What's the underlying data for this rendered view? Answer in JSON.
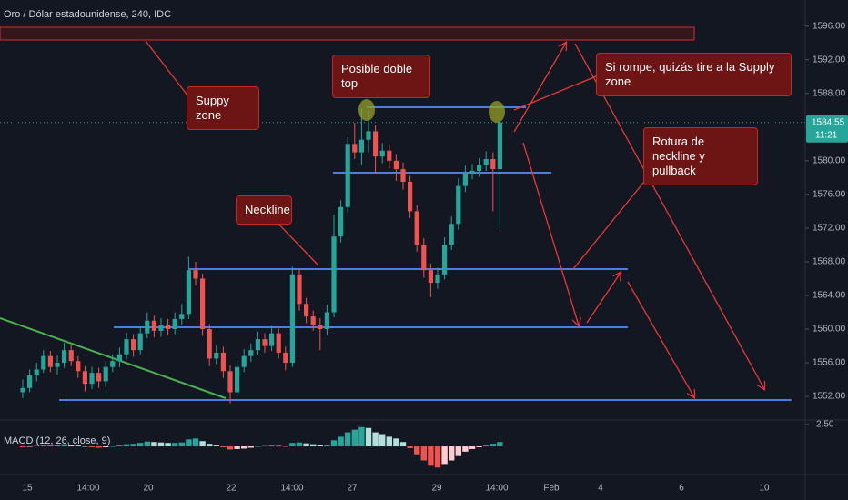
{
  "header": "Oro / Dólar estadounidense, 240, IDC",
  "chart_data": [
    {
      "type": "candlestick",
      "open": [
        1552.5,
        1553.0,
        1554.5,
        1555.2,
        1556.8,
        1555.5,
        1556.0,
        1557.5,
        1556.2,
        1555.0,
        1553.5,
        1554.8,
        1553.8,
        1555.5,
        1556.2,
        1557.0,
        1558.8,
        1557.5,
        1559.5,
        1561.0,
        1559.8,
        1560.5,
        1560.0,
        1561.2,
        1561.8,
        1567.0,
        1566.0,
        1560.0,
        1556.5,
        1557.2,
        1555.0,
        1552.5,
        1555.5,
        1556.8,
        1557.5,
        1558.8,
        1558.0,
        1559.5,
        1557.2,
        1556.0,
        1566.5,
        1563.0,
        1561.5,
        1560.5,
        1560.0,
        1562.0,
        1571.0,
        1574.5,
        1582.0,
        1581.0,
        1582.5,
        1583.5,
        1580.5,
        1581.2,
        1580.0,
        1579.0,
        1577.5,
        1574.0,
        1570.0,
        1567.0,
        1565.5,
        1566.5,
        1570.0,
        1572.5,
        1577.0,
        1578.5,
        1578.8,
        1579.5,
        1580.2,
        1579.0
      ],
      "high": [
        1554.0,
        1555.2,
        1556.0,
        1557.5,
        1557.4,
        1556.9,
        1558.4,
        1558.1,
        1556.8,
        1555.6,
        1555.5,
        1555.4,
        1556.2,
        1557.0,
        1557.8,
        1559.6,
        1559.4,
        1560.3,
        1562.0,
        1561.6,
        1561.3,
        1561.2,
        1562.0,
        1563.0,
        1568.6,
        1568.0,
        1566.6,
        1560.6,
        1558.1,
        1557.9,
        1555.7,
        1556.3,
        1557.6,
        1558.3,
        1559.7,
        1559.5,
        1560.4,
        1560.1,
        1557.9,
        1567.4,
        1567.2,
        1563.7,
        1562.2,
        1561.3,
        1562.9,
        1573.6,
        1575.3,
        1582.8,
        1584.5,
        1586.2,
        1586.0,
        1584.2,
        1582.1,
        1581.9,
        1580.8,
        1579.8,
        1578.2,
        1574.7,
        1570.8,
        1567.8,
        1567.3,
        1570.9,
        1573.4,
        1577.9,
        1579.4,
        1579.6,
        1580.3,
        1581.1,
        1581.0,
        1585.3
      ],
      "low": [
        1551.8,
        1552.5,
        1553.8,
        1554.8,
        1554.9,
        1554.6,
        1555.4,
        1555.6,
        1554.2,
        1552.6,
        1552.9,
        1553.0,
        1553.1,
        1554.9,
        1555.5,
        1556.4,
        1556.7,
        1557.0,
        1558.9,
        1559.0,
        1559.1,
        1559.3,
        1559.4,
        1560.5,
        1561.2,
        1565.2,
        1559.2,
        1555.6,
        1555.8,
        1554.2,
        1551.2,
        1552.0,
        1554.9,
        1556.1,
        1556.9,
        1557.2,
        1557.4,
        1556.5,
        1555.1,
        1555.5,
        1562.2,
        1560.7,
        1559.8,
        1557.5,
        1559.3,
        1561.4,
        1570.3,
        1573.8,
        1580.2,
        1579.5,
        1581.0,
        1578.5,
        1579.7,
        1579.1,
        1577.6,
        1576.6,
        1573.2,
        1569.2,
        1566.1,
        1563.8,
        1564.8,
        1565.9,
        1569.4,
        1571.8,
        1576.3,
        1577.8,
        1578.1,
        1578.8,
        1574.0,
        1572.0
      ],
      "close": [
        1553.0,
        1554.5,
        1555.2,
        1556.8,
        1555.5,
        1556.0,
        1557.5,
        1556.2,
        1555.0,
        1553.5,
        1554.8,
        1553.8,
        1555.5,
        1556.2,
        1557.0,
        1558.8,
        1557.5,
        1559.5,
        1561.0,
        1559.8,
        1560.5,
        1560.0,
        1561.2,
        1561.8,
        1567.0,
        1566.0,
        1560.0,
        1556.5,
        1557.2,
        1555.0,
        1552.5,
        1555.5,
        1556.8,
        1557.5,
        1558.8,
        1558.0,
        1559.5,
        1557.2,
        1556.0,
        1566.5,
        1563.0,
        1561.5,
        1560.5,
        1560.0,
        1562.0,
        1571.0,
        1574.5,
        1582.0,
        1581.0,
        1582.5,
        1583.5,
        1580.5,
        1581.2,
        1580.0,
        1579.0,
        1577.5,
        1574.0,
        1570.0,
        1567.0,
        1565.5,
        1566.5,
        1570.0,
        1572.5,
        1577.0,
        1578.5,
        1578.8,
        1579.5,
        1580.2,
        1579.0,
        1584.55
      ],
      "up_color": "#26a69a",
      "down_color": "#ef5350",
      "ylim": [
        1549.2,
        1599.1
      ],
      "yticks": [
        {
          "value": 1596,
          "label": "1596.00"
        },
        {
          "value": 1592,
          "label": "1592.00"
        },
        {
          "value": 1588,
          "label": "1588.00"
        },
        {
          "value": 1584,
          "label": "1584.00"
        },
        {
          "value": 1580,
          "label": "1580.00"
        },
        {
          "value": 1576,
          "label": "1576.00"
        },
        {
          "value": 1572,
          "label": "1572.00"
        },
        {
          "value": 1568,
          "label": "1568.00"
        },
        {
          "value": 1564,
          "label": "1564.00"
        },
        {
          "value": 1560,
          "label": "1560.00"
        },
        {
          "value": 1556,
          "label": "1556.00"
        },
        {
          "value": 1552,
          "label": "1552.00"
        }
      ],
      "last_price": 1584.55,
      "countdown": "11:21",
      "x_labels": [
        "15",
        "14:00",
        "20",
        "22",
        "14:00",
        "27",
        "29",
        "14:00",
        "Feb",
        "4",
        "6",
        "10"
      ]
    },
    {
      "type": "bar",
      "title": "MACD (12, 26, close, 9)",
      "values": [
        -0.1,
        -0.05,
        0.05,
        0.15,
        0.2,
        0.2,
        0.25,
        0.2,
        0.1,
        0.0,
        -0.1,
        -0.15,
        -0.1,
        0.0,
        0.1,
        0.25,
        0.3,
        0.4,
        0.55,
        0.5,
        0.45,
        0.4,
        0.4,
        0.45,
        0.8,
        0.9,
        0.6,
        0.3,
        0.1,
        -0.1,
        -0.35,
        -0.3,
        -0.25,
        -0.15,
        0.0,
        0.05,
        0.1,
        0.05,
        -0.05,
        0.4,
        0.45,
        0.35,
        0.25,
        0.15,
        0.2,
        0.7,
        1.1,
        1.6,
        1.9,
        2.2,
        2.1,
        1.6,
        1.4,
        1.1,
        0.9,
        0.5,
        -0.2,
        -0.9,
        -1.6,
        -2.2,
        -2.4,
        -2.0,
        -1.6,
        -1.1,
        -0.6,
        -0.3,
        -0.1,
        0.1,
        0.3,
        0.5
      ],
      "colors": {
        "up_rising": "#26a69a",
        "up_falling": "#b2dfdb",
        "down_falling": "#ef5350",
        "down_rising": "#ffcdd2"
      },
      "ylim": [
        -3.2,
        2.9
      ],
      "yticks": [
        {
          "value": 2.5,
          "label": "2.50"
        }
      ]
    }
  ],
  "annotations": {
    "supply": "Suppy zone",
    "double_top": "Posible doble top",
    "breakout": "Si rompe, quizás tire a la Supply zone",
    "neckline": "Neckline",
    "pullback": "Rotura de neckline y pullback"
  }
}
